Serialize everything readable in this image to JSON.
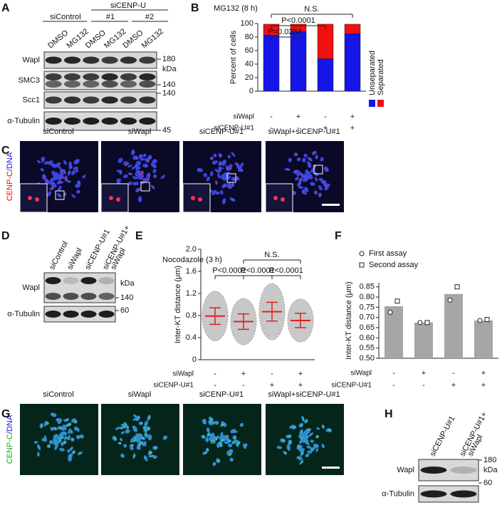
{
  "panel_labels": [
    "A",
    "B",
    "C",
    "D",
    "E",
    "F",
    "G",
    "H"
  ],
  "panel_a": {
    "group_header": "siCENP-U",
    "lane_groups": [
      "siControl",
      "#1",
      "#2"
    ],
    "lanes": [
      "DMSO",
      "MG132",
      "DMSO",
      "MG132",
      "DMSO",
      "MG132"
    ],
    "rows": [
      "Wapl",
      "SMC3",
      "Scc1",
      "α-Tubulin"
    ],
    "markers": [
      "180",
      "kDa",
      "140",
      "140",
      "45"
    ]
  },
  "panel_c": {
    "conditions": [
      "siControl",
      "siWapl",
      "siCENP-U#1",
      "siWapl+siCENP-U#1"
    ],
    "stain": [
      "CENP-C",
      "/DNA"
    ]
  },
  "panel_d": {
    "lanes": [
      [
        "siControl"
      ],
      [
        "siWapl"
      ],
      [
        "siCENP-U#1"
      ],
      [
        "siCENP-U#1+",
        "siWapl"
      ]
    ],
    "rows": [
      "Wapl",
      "α-Tubulin"
    ],
    "markers": [
      "kDa",
      "140",
      "60"
    ]
  },
  "panel_g": {
    "conditions": [
      "siControl",
      "siWapl",
      "siCENP-U#1",
      "siWapl+siCENP-U#1"
    ],
    "stain": [
      "CENP-C",
      "/DNA"
    ]
  },
  "panel_h": {
    "lanes": [
      [
        "siCENP-U#1"
      ],
      [
        "siCENP-U#1+",
        "siWapl"
      ]
    ],
    "rows": [
      "Wapl",
      "α-Tubulin"
    ],
    "markers": [
      "180",
      "kDa",
      "60"
    ]
  },
  "chart_data": [
    {
      "type": "stacked_bar",
      "title": "MG132 (8 h)",
      "y_label": "Percent of cells",
      "categories": [
        null,
        null,
        null,
        null
      ],
      "conditions": [
        {
          "name": "siWapl",
          "values": [
            "-",
            "+",
            "-",
            "+"
          ]
        },
        {
          "name": "siCENP-U#1",
          "values": [
            "-",
            "-",
            "+",
            "+"
          ]
        }
      ],
      "series": [
        {
          "name": "Unseparated",
          "color": "#1515e6",
          "values": [
            83,
            88,
            48,
            85
          ]
        },
        {
          "name": "Separated",
          "color": "#f01010",
          "values": [
            16,
            11,
            51,
            14
          ]
        }
      ],
      "annotations": [
        "P=0.0284",
        "P<0.0001",
        "N.S."
      ],
      "ylim": [
        0,
        100
      ],
      "yticks": [
        0,
        20,
        40,
        60,
        80,
        100
      ]
    },
    {
      "type": "dot",
      "title": "Nocodazole (3 h)",
      "y_label": "Inter-KT distance (μm)",
      "categories": [
        null,
        null,
        null,
        null
      ],
      "conditions": [
        {
          "name": "siWapl",
          "values": [
            "-",
            "+",
            "-",
            "+"
          ]
        },
        {
          "name": "siCENP-U#1",
          "values": [
            "-",
            "-",
            "+",
            "+"
          ]
        }
      ],
      "values": [
        0.79,
        0.69,
        0.87,
        0.71
      ],
      "errors": [
        0.15,
        0.14,
        0.17,
        0.13
      ],
      "color": "#e02020",
      "annotations": [
        "P<0.0001",
        "P<0.0001",
        "P<0.0001",
        "N.S."
      ],
      "ylim": [
        0,
        2.0
      ],
      "yticks": [
        0,
        0.4,
        0.8,
        1.2,
        1.6,
        {
          "value": 2.0,
          "label": "2.0"
        }
      ]
    },
    {
      "type": "bar",
      "y_label": "Inter-KT distance (μm)",
      "categories": [
        null,
        null,
        null,
        null
      ],
      "conditions": [
        {
          "name": "siWapl",
          "values": [
            "-",
            "+",
            "-",
            "+"
          ]
        },
        {
          "name": "siCENP-U#1",
          "values": [
            "-",
            "-",
            "+",
            "+"
          ]
        }
      ],
      "values": [
        0.755,
        0.675,
        0.815,
        0.685
      ],
      "color": "#a6a6a6",
      "series": [
        {
          "name": "First assay",
          "marker": "circle",
          "values": [
            0.725,
            0.675,
            0.785,
            0.685
          ]
        },
        {
          "name": "Second assay",
          "marker": "square",
          "values": [
            0.78,
            0.675,
            0.85,
            0.69
          ]
        }
      ],
      "ylim": [
        0.5,
        0.87
      ],
      "yticks": [
        {
          "value": 0.5,
          "label": "0.50"
        },
        0.55,
        {
          "value": 0.6,
          "label": "0.60"
        },
        0.65,
        {
          "value": 0.7,
          "label": "0.70"
        },
        0.75,
        {
          "value": 0.8,
          "label": "0.80"
        },
        0.85
      ]
    }
  ]
}
